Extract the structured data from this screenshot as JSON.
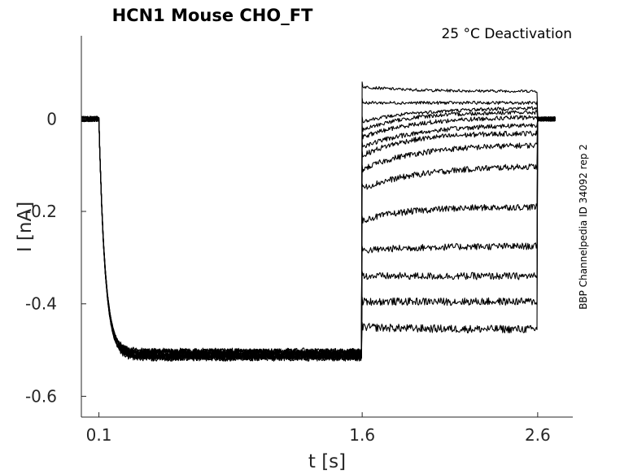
{
  "chart_data": {
    "type": "line",
    "title": "HCN1  Mouse  CHO_FT",
    "subtitle": "25 °C  Deactivation",
    "side_label": "BBP Channelpedia ID 34092 rep 2",
    "xlabel": "t [s]",
    "ylabel": "I [nA]",
    "xlim": [
      0.0,
      2.8
    ],
    "ylim": [
      -0.645,
      0.18
    ],
    "x_ticks": [
      "0.1",
      "1.6",
      "2.6"
    ],
    "y_ticks": [
      "0",
      "-0.2",
      "-0.4",
      "-0.6"
    ],
    "grid": false,
    "protocol": {
      "holding_current": 0.0,
      "activation_start": 0.1,
      "activation_steady_current": -0.51,
      "test_start": 1.6,
      "test_end": 2.6
    },
    "series": [
      {
        "test_initial_current": 0.07,
        "test_final_current": 0.06
      },
      {
        "test_initial_current": 0.035,
        "test_final_current": 0.035
      },
      {
        "test_initial_current": -0.005,
        "test_final_current": 0.025
      },
      {
        "test_initial_current": -0.025,
        "test_final_current": 0.015
      },
      {
        "test_initial_current": -0.04,
        "test_final_current": 0.005
      },
      {
        "test_initial_current": -0.06,
        "test_final_current": -0.01
      },
      {
        "test_initial_current": -0.08,
        "test_final_current": -0.03
      },
      {
        "test_initial_current": -0.11,
        "test_final_current": -0.055
      },
      {
        "test_initial_current": -0.15,
        "test_final_current": -0.1
      },
      {
        "test_initial_current": -0.22,
        "test_final_current": -0.19
      },
      {
        "test_initial_current": -0.285,
        "test_final_current": -0.275
      },
      {
        "test_initial_current": -0.34,
        "test_final_current": -0.34
      },
      {
        "test_initial_current": -0.395,
        "test_final_current": -0.395
      },
      {
        "test_initial_current": -0.45,
        "test_final_current": -0.455
      }
    ]
  }
}
